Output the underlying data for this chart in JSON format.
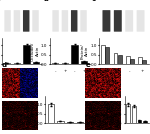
{
  "panel_a": {
    "bar_values": [
      0.05,
      0.08,
      1.0,
      0.12
    ],
    "bar_colors": [
      "#ffffff",
      "#ffffff",
      "#000000",
      "#000000"
    ],
    "bar_edge": "#000000",
    "xlabel_vals": [
      "-",
      "+",
      "-",
      "+"
    ],
    "ylabel": "Occludin/\nActin",
    "ylim": [
      0,
      1.4
    ]
  },
  "panel_b": {
    "bar_values": [
      0.05,
      0.07,
      1.0,
      0.15
    ],
    "bar_colors": [
      "#ffffff",
      "#ffffff",
      "#000000",
      "#000000"
    ],
    "bar_edge": "#000000",
    "xlabel_vals": [
      "-",
      "+",
      "-",
      "+"
    ],
    "ylabel": "Occludin/\nActin",
    "ylim": [
      0,
      1.4
    ]
  },
  "panel_c": {
    "bar_values_ctrl": [
      1.0,
      0.6,
      0.45,
      0.38
    ],
    "bar_values_lpcat": [
      0.9,
      0.5,
      0.3,
      0.22
    ],
    "bar_colors_ctrl": "#ffffff",
    "bar_colors_lpcat": "#555555",
    "xlabel_vals": [
      "-",
      "+",
      "-",
      "+"
    ],
    "ylabel": "Protein/\nActin",
    "ylim": [
      0,
      1.4
    ]
  },
  "panel_d": {
    "bar_values": [
      1.0,
      0.12,
      0.08,
      0.05
    ],
    "bar_colors": [
      "#ffffff",
      "#ffffff",
      "#000000",
      "#000000"
    ],
    "bar_edge": "#000000",
    "ylabel": "Occludin\nIntensity",
    "ylim": [
      0,
      1.4
    ]
  },
  "panel_e": {
    "bar_values": [
      1.0,
      0.9,
      0.15,
      0.12
    ],
    "bar_colors": [
      "#ffffff",
      "#ffffff",
      "#000000",
      "#000000"
    ],
    "bar_edge": "#000000",
    "ylabel": "Occludin\nIntensity",
    "ylim": [
      0,
      1.4
    ]
  },
  "bg_color": "#ffffff",
  "fluor_dim_r": [
    0.15,
    0.7,
    0.02,
    0.02,
    42
  ],
  "fluor_bright_r": [
    0.5,
    0.9,
    0.05,
    0.05,
    10
  ],
  "fluor_blue": [
    0.35,
    0.02,
    0.02,
    0.85,
    5
  ]
}
